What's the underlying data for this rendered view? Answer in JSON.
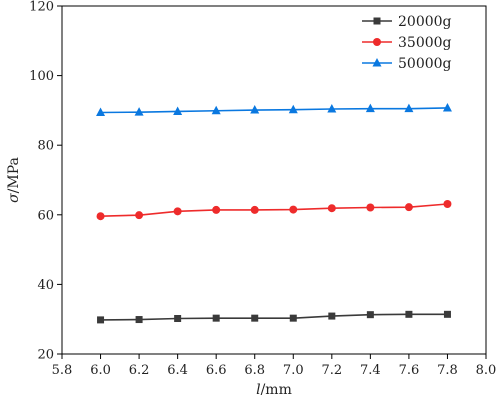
{
  "chart_data": {
    "type": "line",
    "xlabel_symbol": "l",
    "xlabel_unit": "/mm",
    "ylabel_symbol": "σ",
    "ylabel_unit": "/MPa",
    "xlim": [
      5.8,
      8.0
    ],
    "ylim": [
      20,
      120
    ],
    "xticks": [
      "5.8",
      "6.0",
      "6.2",
      "6.4",
      "6.6",
      "6.8",
      "7.0",
      "7.2",
      "7.4",
      "7.6",
      "7.8",
      "8.0"
    ],
    "xtick_values": [
      5.8,
      6.0,
      6.2,
      6.4,
      6.6,
      6.8,
      7.0,
      7.2,
      7.4,
      7.6,
      7.8,
      8.0
    ],
    "yticks": [
      "20",
      "40",
      "60",
      "80",
      "100",
      "120"
    ],
    "ytick_values": [
      20,
      40,
      60,
      80,
      100,
      120
    ],
    "x": [
      6.0,
      6.2,
      6.4,
      6.6,
      6.8,
      7.0,
      7.2,
      7.4,
      7.6,
      7.8
    ],
    "legend_position": "top-right",
    "grid": false,
    "series": [
      {
        "name": "20000g",
        "color": "#3a3a3a",
        "marker": "square",
        "values": [
          29.8,
          29.9,
          30.2,
          30.3,
          30.3,
          30.3,
          30.9,
          31.3,
          31.4,
          31.4
        ]
      },
      {
        "name": "35000g",
        "color": "#ee2b2b",
        "marker": "circle",
        "values": [
          59.6,
          59.9,
          61.0,
          61.4,
          61.4,
          61.5,
          61.9,
          62.1,
          62.2,
          63.1
        ]
      },
      {
        "name": "50000g",
        "color": "#0a78e0",
        "marker": "triangle",
        "values": [
          89.4,
          89.5,
          89.7,
          89.9,
          90.1,
          90.2,
          90.4,
          90.5,
          90.5,
          90.7
        ]
      }
    ]
  }
}
